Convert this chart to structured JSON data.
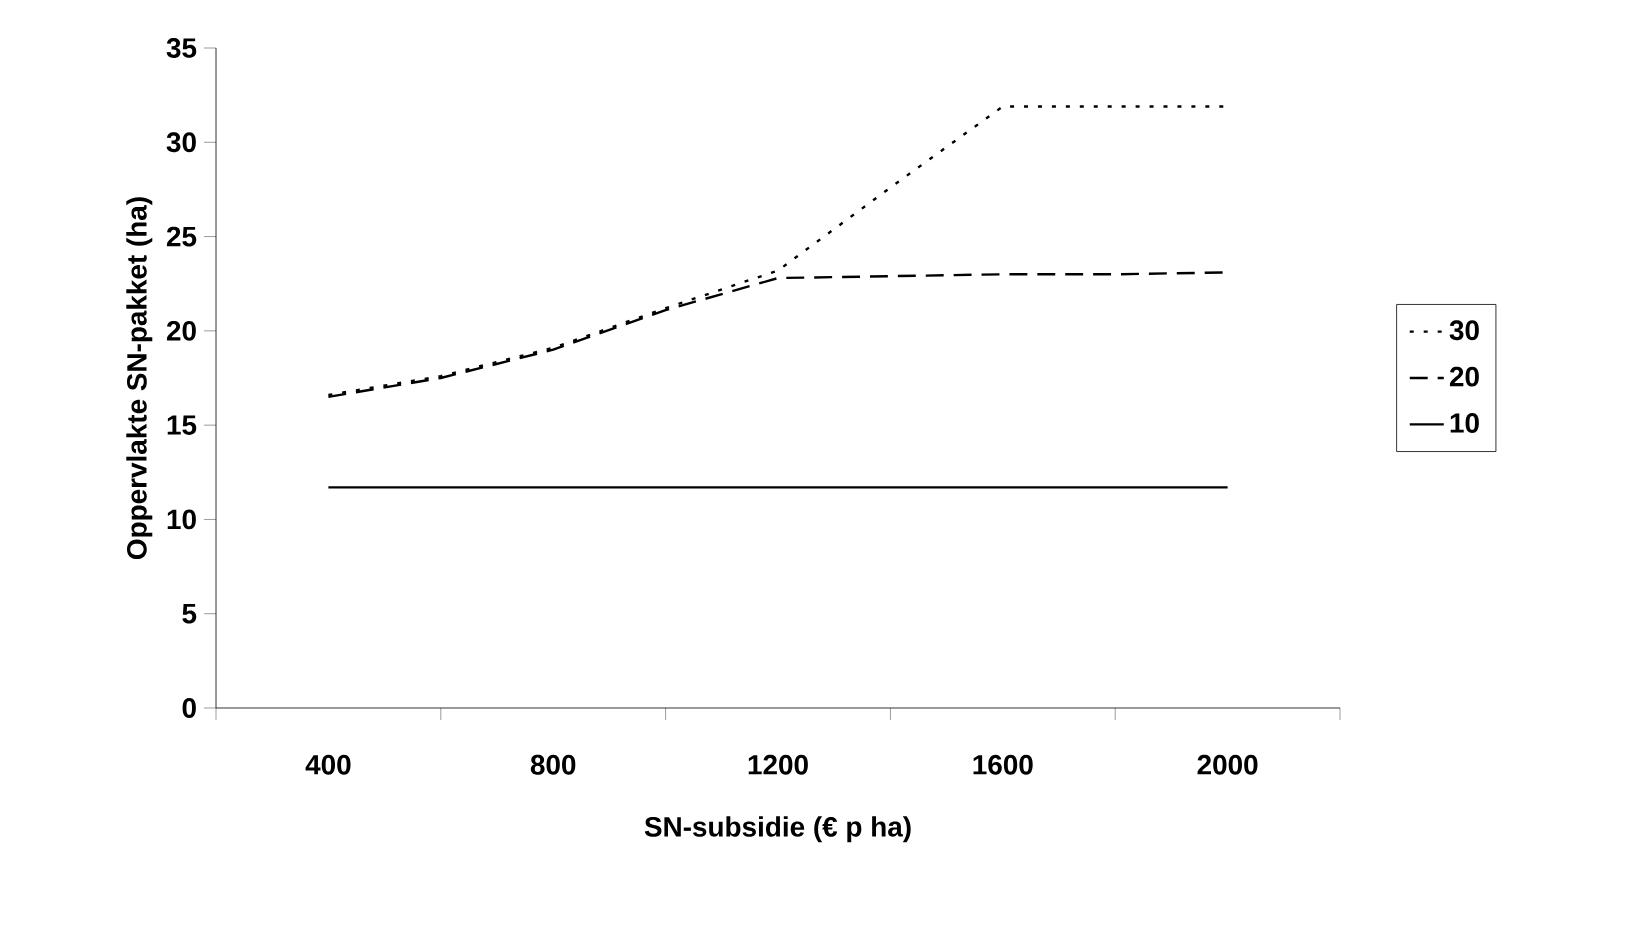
{
  "chart_data": {
    "type": "line",
    "xlabel": "SN-subsidie (€ p ha)",
    "ylabel": "Oppervlakte SN-pakket (ha)",
    "x": [
      400,
      600,
      800,
      1000,
      1200,
      1400,
      1600,
      1800,
      2000
    ],
    "series": [
      {
        "name": "30",
        "color": "#000000",
        "line_style": "dotted",
        "values": [
          16.6,
          17.6,
          19.1,
          21.2,
          23.2,
          27.6,
          31.9,
          31.9,
          31.9
        ]
      },
      {
        "name": "20",
        "color": "#000000",
        "line_style": "dashed",
        "values": [
          16.5,
          17.5,
          19.0,
          21.1,
          22.8,
          22.9,
          23.0,
          23.0,
          23.1
        ]
      },
      {
        "name": "10",
        "color": "#000000",
        "line_style": "solid",
        "values": [
          11.7,
          11.7,
          11.7,
          11.7,
          11.7,
          11.7,
          11.7,
          11.7,
          11.7
        ]
      }
    ],
    "xlim": [
      200,
      2200
    ],
    "xticks": [
      {
        "value": 200,
        "label": null
      },
      {
        "value": 400,
        "label": "400"
      },
      {
        "value": 600,
        "label": null
      },
      {
        "value": 800,
        "label": "800"
      },
      {
        "value": 1000,
        "label": null
      },
      {
        "value": 1200,
        "label": "1200"
      },
      {
        "value": 1400,
        "label": null
      },
      {
        "value": 1600,
        "label": "1600"
      },
      {
        "value": 1800,
        "label": null
      },
      {
        "value": 2000,
        "label": "2000"
      },
      {
        "value": 2200,
        "label": null
      }
    ],
    "ylim": [
      0,
      35
    ],
    "yticks": [
      0,
      5,
      10,
      15,
      20,
      25,
      30,
      35
    ],
    "grid": false,
    "legend": "right",
    "marker": "none"
  }
}
